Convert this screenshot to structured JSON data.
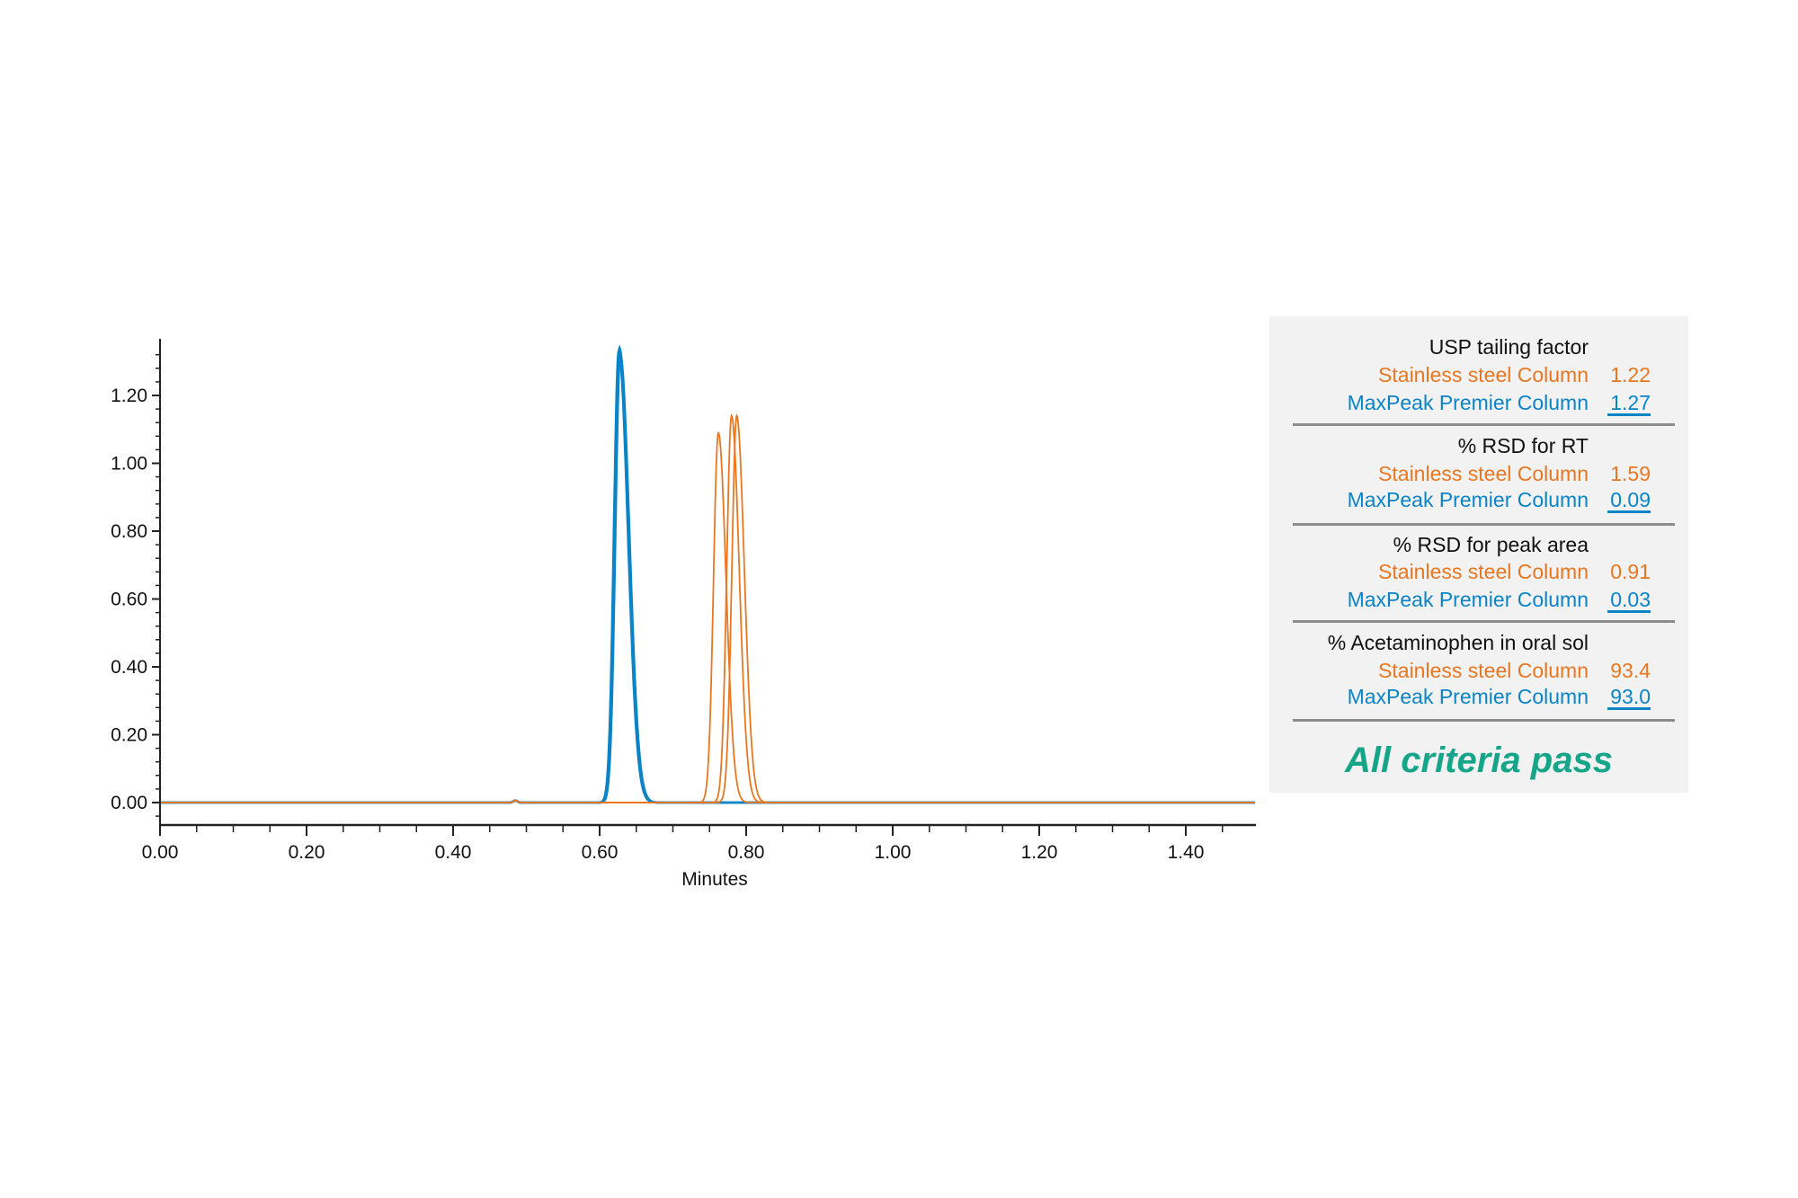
{
  "colors": {
    "stainless": "#e87722",
    "maxpeak": "#0a84c6",
    "pass": "#17a58a"
  },
  "chart_data": {
    "type": "line",
    "title": "",
    "xlabel": "Minutes",
    "ylabel": "",
    "xlim": [
      0,
      1.5
    ],
    "ylim": [
      -0.06,
      1.4
    ],
    "x_ticks": [
      "0.00",
      "0.20",
      "0.40",
      "0.60",
      "0.80",
      "1.00",
      "1.20",
      "1.40"
    ],
    "y_ticks": [
      "0.00",
      "0.20",
      "0.40",
      "0.60",
      "0.80",
      "1.00",
      "1.20"
    ],
    "grid": false,
    "series": [
      {
        "name": "MaxPeak Premier Column",
        "color": "#0a84c6",
        "peaks": [
          {
            "rt": 0.627,
            "height": 1.34
          },
          {
            "rt": 0.628,
            "height": 1.32
          },
          {
            "rt": 0.626,
            "height": 1.33
          }
        ]
      },
      {
        "name": "Stainless steel Column",
        "color": "#e87722",
        "peaks": [
          {
            "rt": 0.762,
            "height": 1.09
          },
          {
            "rt": 0.78,
            "height": 1.14
          },
          {
            "rt": 0.787,
            "height": 1.14
          }
        ]
      }
    ]
  },
  "panel": {
    "sections": [
      {
        "title": "USP tailing factor",
        "stainless_label": "Stainless steel Column",
        "stainless_value": "1.22",
        "maxpeak_label": "MaxPeak Premier Column",
        "maxpeak_value": "1.27"
      },
      {
        "title": "% RSD for RT",
        "stainless_label": "Stainless steel Column",
        "stainless_value": "1.59",
        "maxpeak_label": "MaxPeak Premier Column",
        "maxpeak_value": "0.09"
      },
      {
        "title": "% RSD for peak area",
        "stainless_label": "Stainless steel Column",
        "stainless_value": "0.91",
        "maxpeak_label": "MaxPeak Premier Column",
        "maxpeak_value": "0.03"
      },
      {
        "title": "% Acetaminophen in oral sol",
        "stainless_label": "Stainless steel Column",
        "stainless_value": "93.4",
        "maxpeak_label": "MaxPeak Premier Column",
        "maxpeak_value": "93.0"
      }
    ],
    "verdict": "All criteria pass"
  }
}
